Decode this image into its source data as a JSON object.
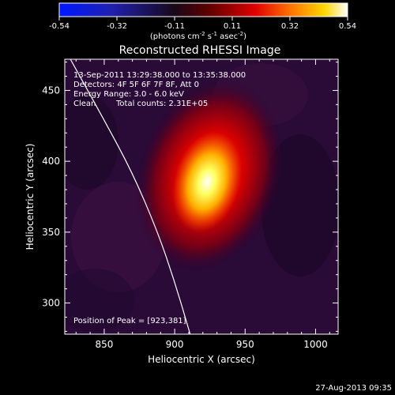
{
  "chart_data": {
    "type": "heatmap",
    "title": "Reconstructed RHESSI Image",
    "xlabel": "Heliocentric X (arcsec)",
    "ylabel": "Heliocentric Y (arcsec)",
    "xlim": [
      822,
      1016
    ],
    "ylim": [
      278,
      472
    ],
    "x_ticks": [
      850,
      900,
      950,
      1000
    ],
    "y_ticks": [
      300,
      350,
      400,
      450
    ],
    "colorbar": {
      "range": [
        -0.54,
        0.54
      ],
      "ticks": [
        "-0.54",
        "-0.32",
        "-0.11",
        "0.11",
        "0.32",
        "0.54"
      ],
      "label_text": "(photons cm",
      "label_exp1": "-2",
      "label_mid": " s",
      "label_exp2": "-1",
      "label_end": " asec",
      "label_exp3": "-2",
      "label_close": ")"
    },
    "annotations": {
      "time_range": "13-Sep-2011 13:29:38.000 to 13:35:38.000",
      "detectors": "Detectors: 4F 5F 6F 7F 8F, Att 0",
      "energy": "Energy Range: 3.0 - 6.0 keV",
      "clean": "Clean",
      "counts": "Total counts: 2.31E+05",
      "peak": "Position of Peak = [923,381]"
    },
    "peak": {
      "x": 923,
      "y": 381,
      "value": 0.54
    },
    "limb_curve": [
      [
        826,
        472
      ],
      [
        850,
        429
      ],
      [
        870,
        392
      ],
      [
        888,
        350
      ],
      [
        900,
        315
      ],
      [
        911,
        278
      ]
    ],
    "colors": [
      "#0000ff",
      "#000000",
      "#ff0000",
      "#ffff00",
      "#ffffff"
    ]
  },
  "footer": {
    "date": "27-Aug-2013 09:35"
  }
}
